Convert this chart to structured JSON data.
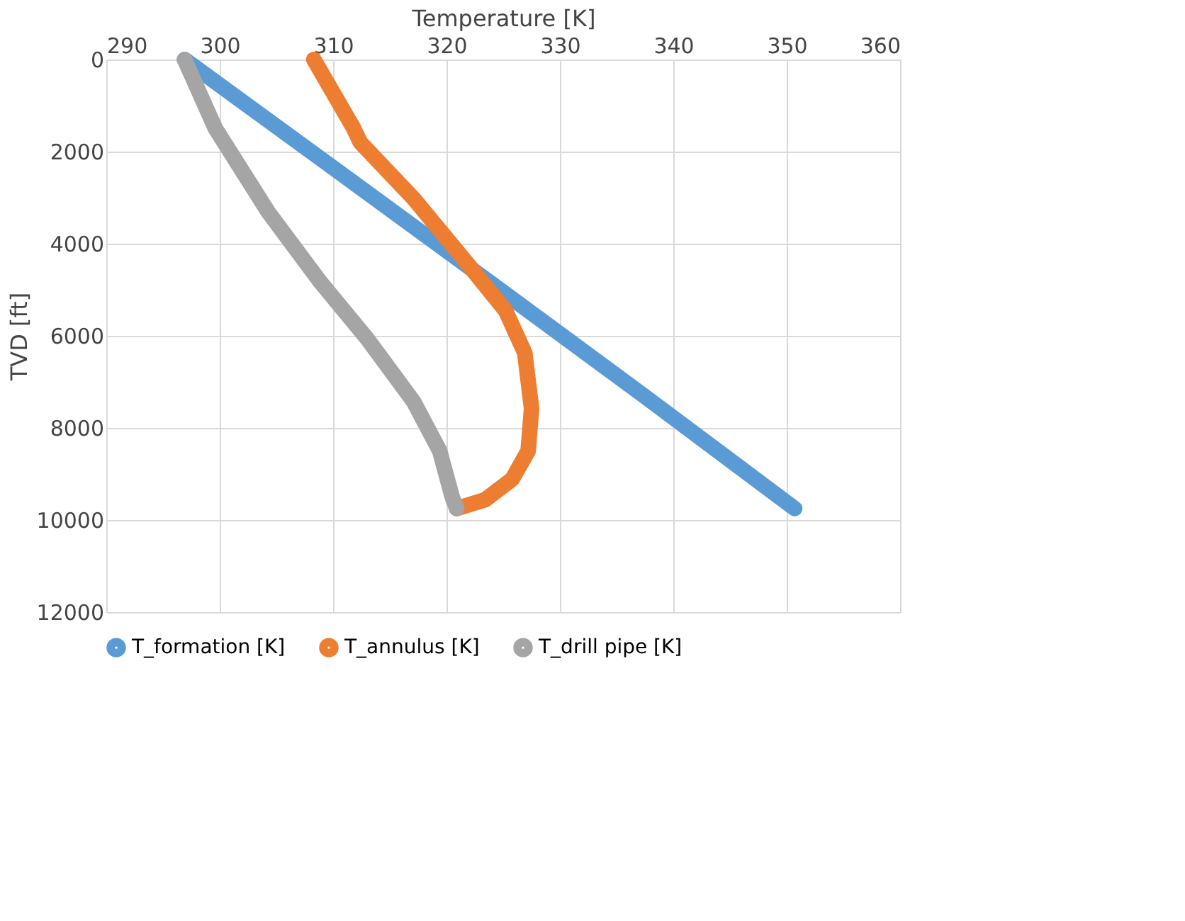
{
  "chart_data": {
    "type": "line",
    "xlabel": "Temperature [K]",
    "ylabel": "TVD [ft]",
    "xlim": [
      290,
      360
    ],
    "xticks": [
      290,
      300,
      310,
      320,
      330,
      340,
      350,
      360
    ],
    "ylim": [
      12000,
      0
    ],
    "yticks": [
      0,
      2000,
      4000,
      6000,
      8000,
      10000,
      12000
    ],
    "grid": true,
    "legend": "bottom",
    "marker": "none",
    "line_style": "solid",
    "series": [
      {
        "name": "T_formation [K]",
        "color": "#5b9bd5",
        "x": [
          296.9,
          310.5,
          324,
          337.4,
          350.7
        ],
        "values": [
          0,
          2440,
          4870,
          7300,
          9750
        ]
      },
      {
        "name": "T_annulus [K]",
        "color": "#ed7d31",
        "x": [
          308.3,
          311.8,
          312.4,
          317.1,
          321.7,
          325.2,
          326.9,
          327.5,
          327.2,
          325.8,
          323.4,
          320.9
        ],
        "values": [
          0,
          1490,
          1800,
          3020,
          4390,
          5450,
          6370,
          7580,
          8500,
          9110,
          9560,
          9750
        ]
      },
      {
        "name": "T_drill pipe [K]",
        "color": "#a5a5a5",
        "x": [
          296.9,
          299.6,
          304.3,
          308.9,
          313,
          317.1,
          319.4,
          320.5,
          320.9
        ],
        "values": [
          0,
          1490,
          3320,
          4840,
          6060,
          7430,
          8500,
          9500,
          9750
        ]
      }
    ]
  }
}
